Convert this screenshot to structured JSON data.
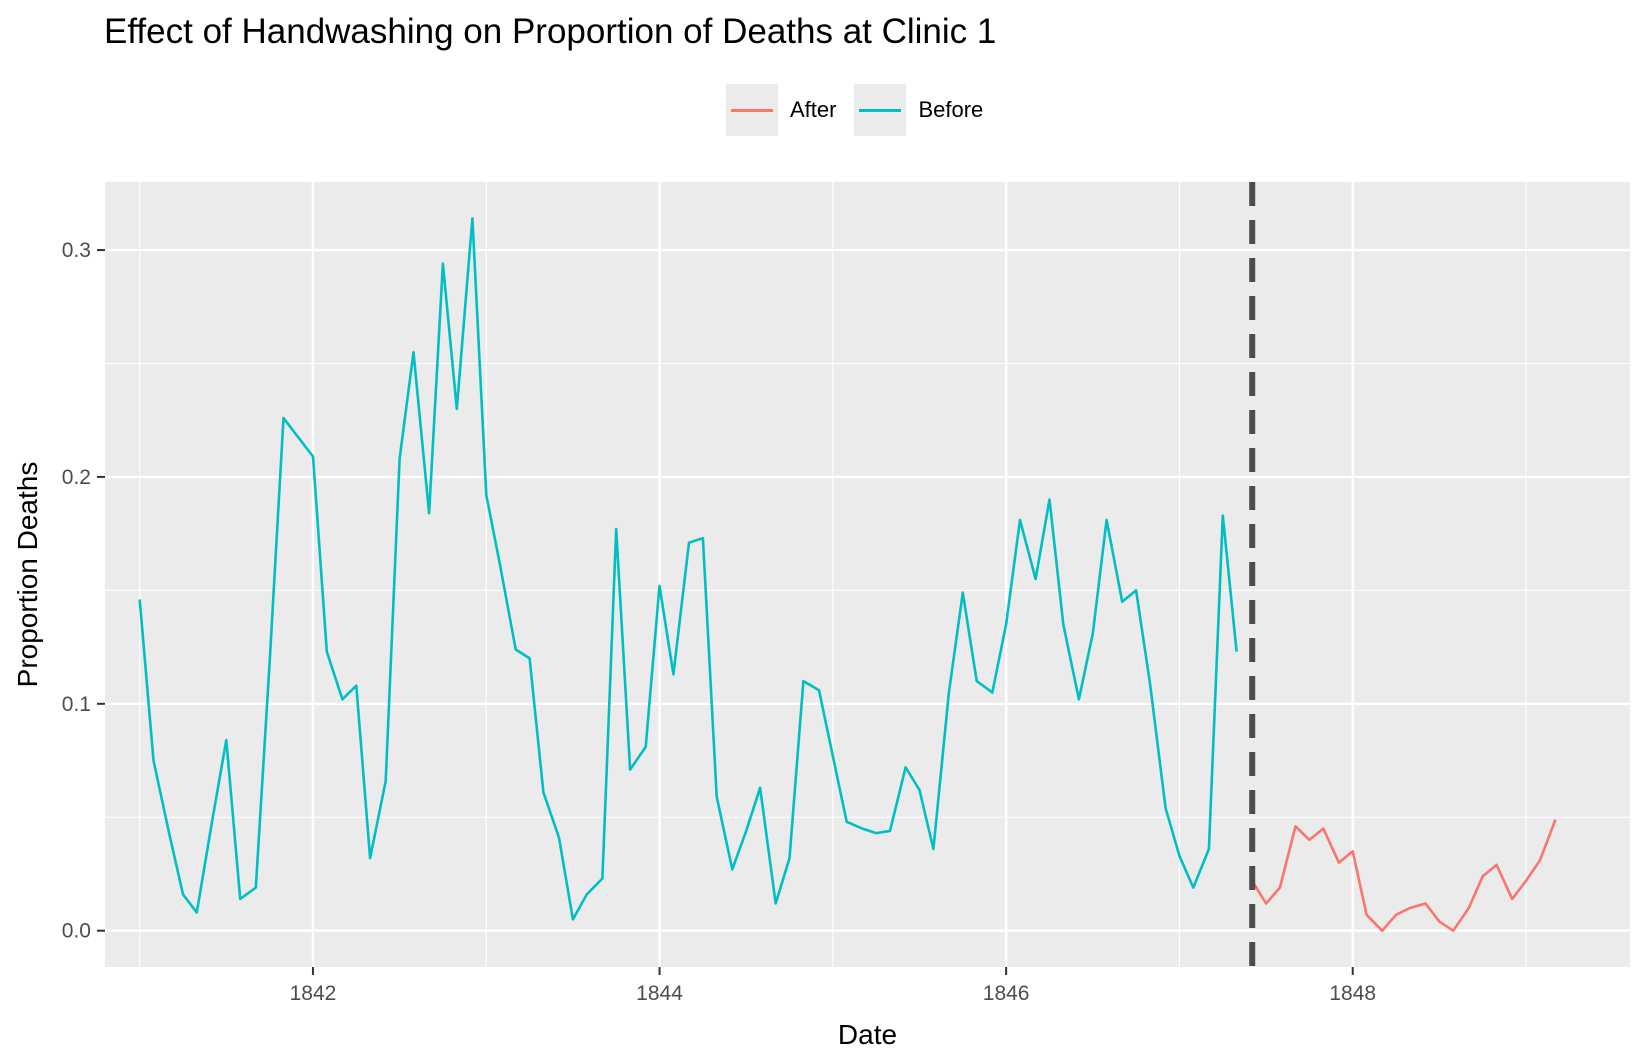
{
  "chart_data": {
    "type": "line",
    "title": "Effect of Handwashing on Proportion of Deaths at Clinic 1",
    "xlabel": "Date",
    "ylabel": "Proportion Deaths",
    "xlim": [
      1840.8,
      1849.6
    ],
    "ylim": [
      -0.016,
      0.33
    ],
    "x_ticks": [
      1842,
      1844,
      1846,
      1848
    ],
    "y_ticks": [
      0.0,
      0.1,
      0.2,
      0.3
    ],
    "y_tick_labels": [
      "0.0",
      "0.1",
      "0.2",
      "0.3"
    ],
    "grid": true,
    "legend_position": "top",
    "reference_line": {
      "x": 1847.42,
      "style": "dashed",
      "color": "#4d4d4d"
    },
    "series": [
      {
        "name": "After",
        "color": "#f8766d",
        "x": [
          1847.42,
          1847.5,
          1847.58,
          1847.67,
          1847.75,
          1847.83,
          1847.92,
          1848.0,
          1848.08,
          1848.17,
          1848.25,
          1848.33,
          1848.42,
          1848.5,
          1848.58,
          1848.67,
          1848.75,
          1848.83,
          1848.92,
          1849.0,
          1849.08,
          1849.17
        ],
        "y": [
          0.022,
          0.012,
          0.019,
          0.046,
          0.04,
          0.045,
          0.03,
          0.035,
          0.007,
          0.0,
          0.007,
          0.01,
          0.012,
          0.004,
          0.0,
          0.01,
          0.024,
          0.029,
          0.014,
          0.022,
          0.031,
          0.049
        ]
      },
      {
        "name": "Before",
        "color": "#00bfc4",
        "x": [
          1841.0,
          1841.08,
          1841.17,
          1841.25,
          1841.33,
          1841.42,
          1841.5,
          1841.58,
          1841.67,
          1841.75,
          1841.83,
          1841.92,
          1842.0,
          1842.08,
          1842.17,
          1842.25,
          1842.33,
          1842.42,
          1842.5,
          1842.58,
          1842.67,
          1842.75,
          1842.83,
          1842.92,
          1843.0,
          1843.08,
          1843.17,
          1843.25,
          1843.33,
          1843.42,
          1843.5,
          1843.58,
          1843.67,
          1843.75,
          1843.83,
          1843.92,
          1844.0,
          1844.08,
          1844.17,
          1844.25,
          1844.33,
          1844.42,
          1844.5,
          1844.58,
          1844.67,
          1844.75,
          1844.83,
          1844.92,
          1845.0,
          1845.08,
          1845.17,
          1845.25,
          1845.33,
          1845.42,
          1845.5,
          1845.58,
          1845.67,
          1845.75,
          1845.83,
          1845.92,
          1846.0,
          1846.08,
          1846.17,
          1846.25,
          1846.33,
          1846.42,
          1846.5,
          1846.58,
          1846.67,
          1846.75,
          1846.83,
          1846.92,
          1847.0,
          1847.08,
          1847.17,
          1847.25,
          1847.33
        ],
        "y": [
          0.146,
          0.075,
          0.043,
          0.016,
          0.008,
          0.049,
          0.084,
          0.014,
          0.019,
          0.118,
          0.226,
          0.217,
          0.209,
          0.123,
          0.102,
          0.108,
          0.032,
          0.066,
          0.208,
          0.255,
          0.184,
          0.294,
          0.23,
          0.314,
          0.192,
          0.161,
          0.124,
          0.12,
          0.061,
          0.041,
          0.005,
          0.016,
          0.023,
          0.177,
          0.071,
          0.081,
          0.152,
          0.113,
          0.171,
          0.173,
          0.059,
          0.027,
          0.044,
          0.063,
          0.012,
          0.032,
          0.11,
          0.106,
          0.077,
          0.048,
          0.045,
          0.043,
          0.044,
          0.072,
          0.062,
          0.036,
          0.105,
          0.149,
          0.11,
          0.105,
          0.135,
          0.181,
          0.155,
          0.19,
          0.135,
          0.102,
          0.131,
          0.181,
          0.145,
          0.15,
          0.109,
          0.054,
          0.033,
          0.019,
          0.036,
          0.183,
          0.123
        ]
      }
    ]
  }
}
